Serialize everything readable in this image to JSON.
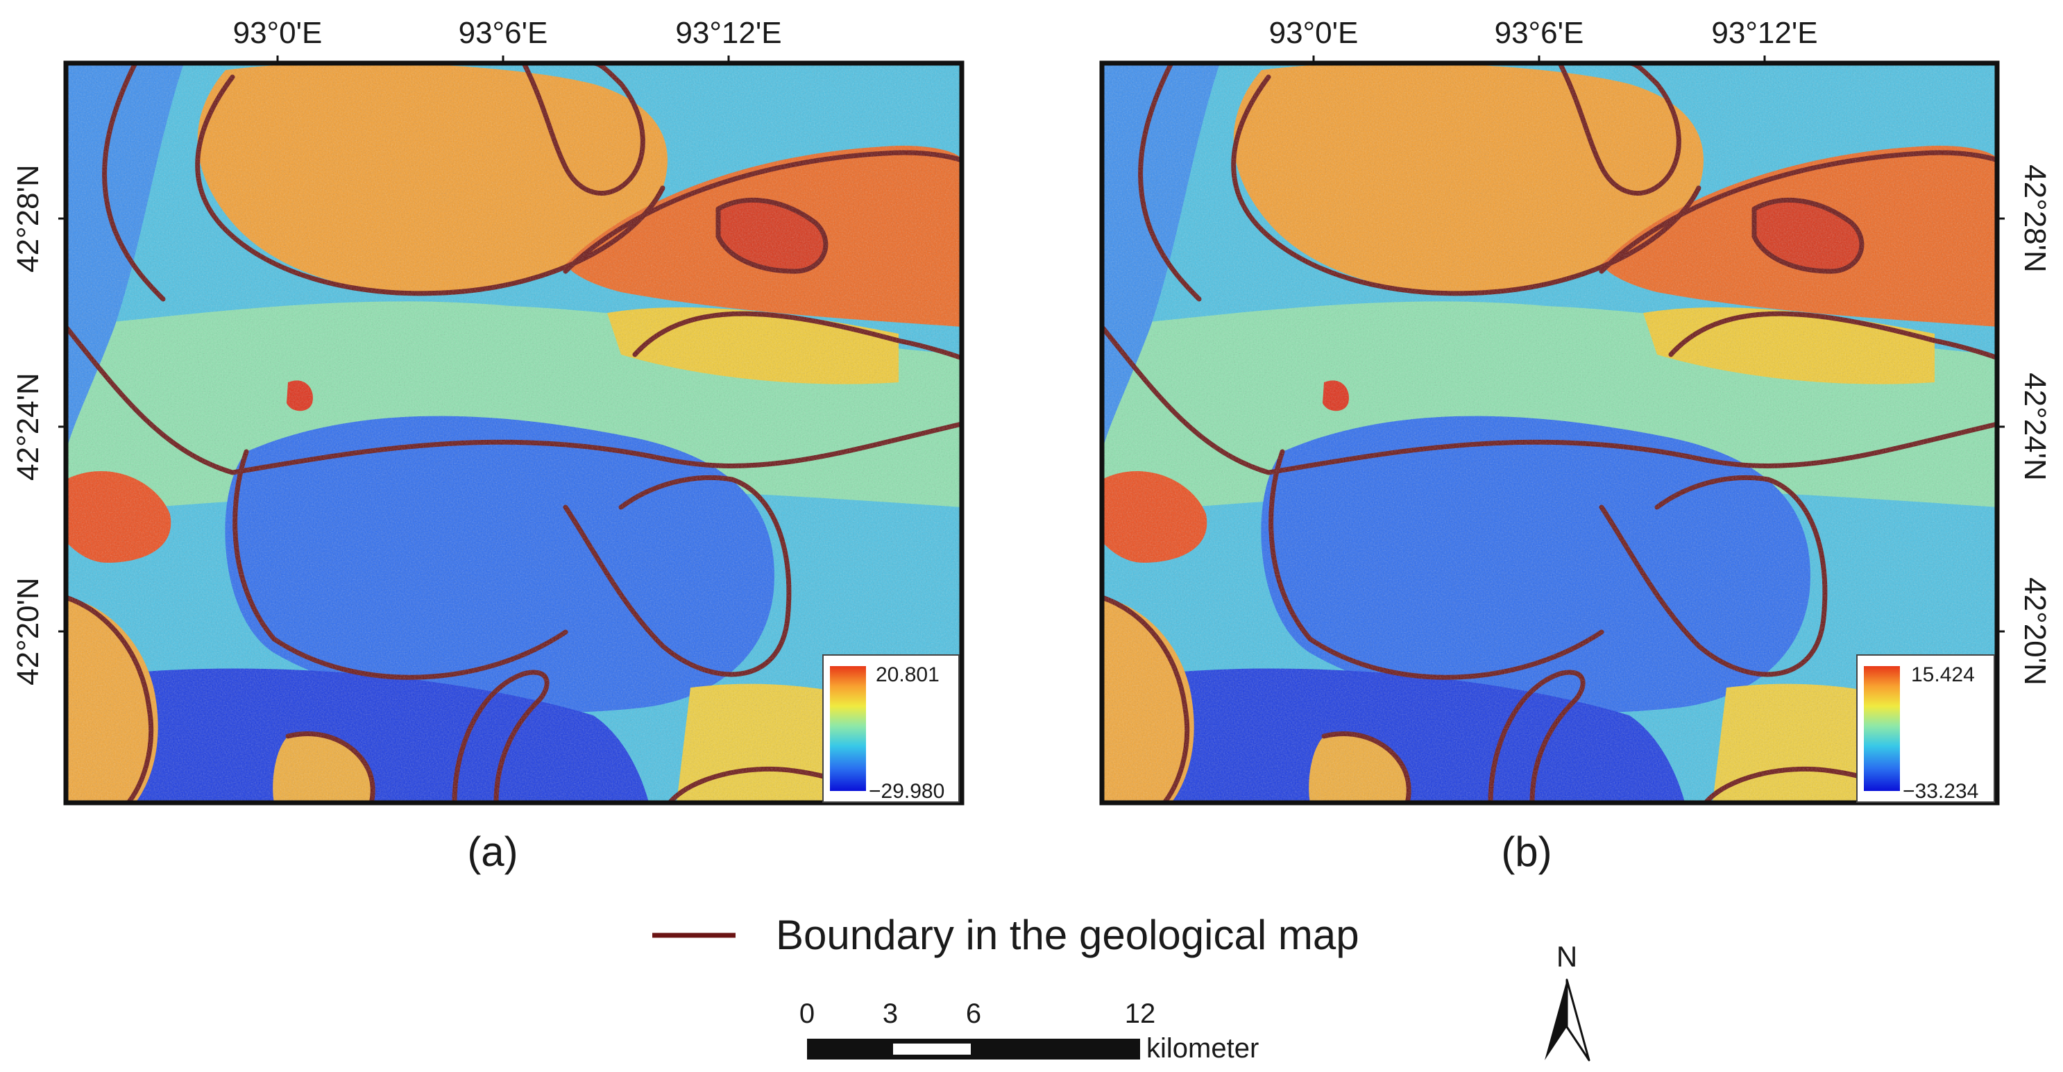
{
  "panels": [
    {
      "id": "a",
      "caption": "(a)",
      "lon_ticks": [
        "93°0'E",
        "93°6'E",
        "93°12'E"
      ],
      "lat_ticks": [
        "42°28'N",
        "42°24'N",
        "42°20'N"
      ],
      "lat_side": "left",
      "colorbar": {
        "max": "20.801",
        "min": "−29.980"
      }
    },
    {
      "id": "b",
      "caption": "(b)",
      "lon_ticks": [
        "93°0'E",
        "93°6'E",
        "93°12'E"
      ],
      "lat_ticks": [
        "42°28'N",
        "42°24'N",
        "42°20'N"
      ],
      "lat_side": "right",
      "colorbar": {
        "max": "15.424",
        "min": "−33.234"
      }
    }
  ],
  "legend": {
    "label": "Boundary in the geological map",
    "line_color": "#6b1414"
  },
  "scale_bar": {
    "ticks": [
      "0",
      "3",
      "6",
      "12"
    ],
    "unit": "kilometer"
  },
  "north_arrow": {
    "label": "N"
  },
  "colors": {
    "boundary": "#6b1414",
    "colormap": [
      "#0a10d8",
      "#2a70f0",
      "#38c8e8",
      "#8ee8a8",
      "#f0ea40",
      "#f8a030",
      "#e83818"
    ]
  }
}
